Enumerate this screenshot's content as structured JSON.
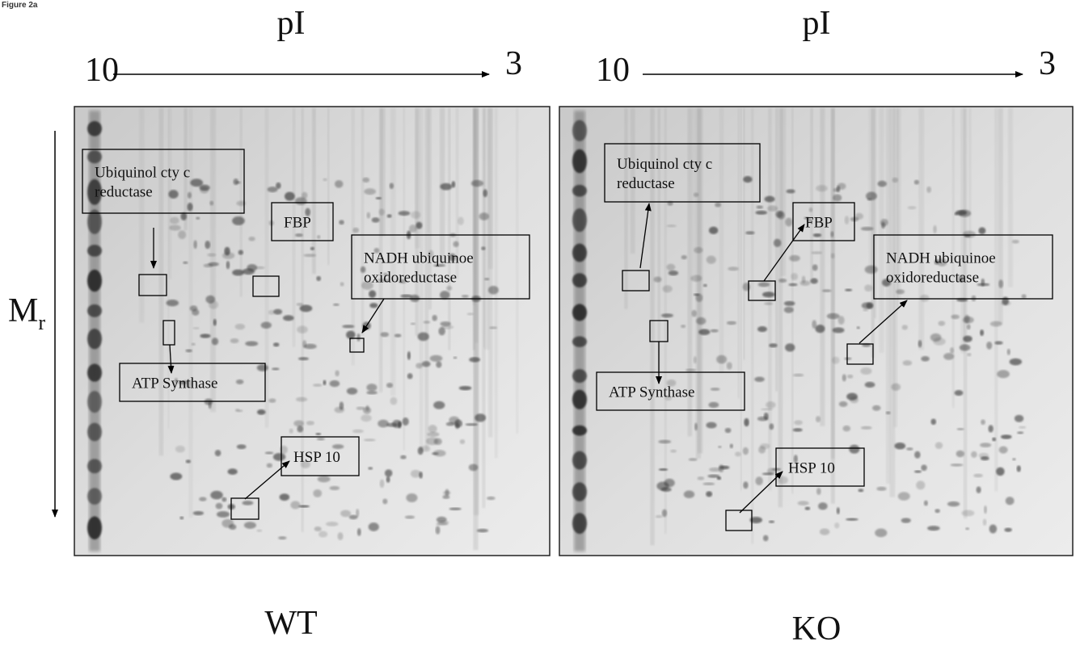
{
  "figure_label": "Figure 2a",
  "mr_axis": {
    "symbol": "M",
    "subscript": "r"
  },
  "panels": [
    {
      "condition": "WT",
      "pi_axis": {
        "title": "pI",
        "start": 10,
        "end": 3
      },
      "annotations": [
        {
          "lines": [
            "Ubiquinol cty c",
            "reductase"
          ]
        },
        {
          "lines": [
            "FBP"
          ]
        },
        {
          "lines": [
            "NADH ubiquinoe",
            "oxidoreductase"
          ]
        },
        {
          "lines": [
            "ATP Synthase"
          ]
        },
        {
          "lines": [
            "HSP 10"
          ]
        }
      ]
    },
    {
      "condition": "KO",
      "pi_axis": {
        "title": "pI",
        "start": 10,
        "end": 3
      },
      "annotations": [
        {
          "lines": [
            "Ubiquinol cty c",
            "reductase"
          ]
        },
        {
          "lines": [
            "FBP"
          ]
        },
        {
          "lines": [
            "NADH ubiquinoe",
            "oxidoreductase"
          ]
        },
        {
          "lines": [
            "ATP Synthase"
          ]
        },
        {
          "lines": [
            "HSP 10"
          ]
        }
      ]
    }
  ]
}
